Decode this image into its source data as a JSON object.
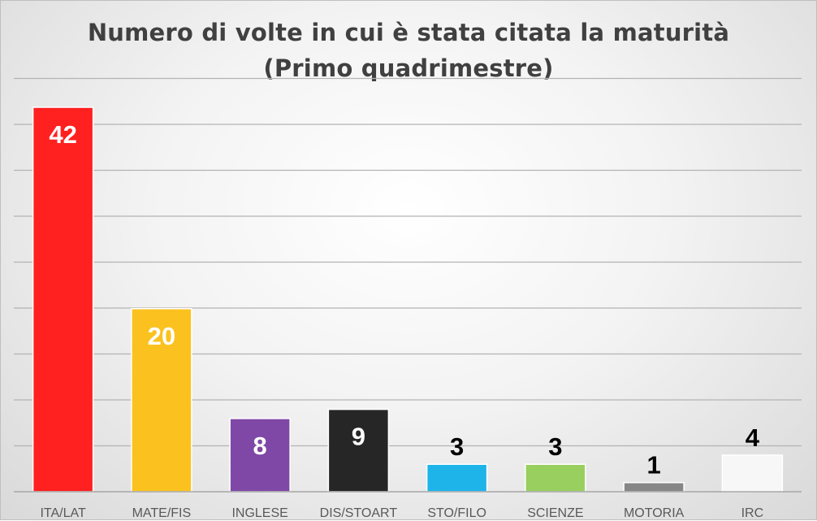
{
  "chart_data": {
    "type": "bar",
    "title": "Numero di volte in cui è stata citata la maturità",
    "subtitle": "(Primo quadrimestre)",
    "categories": [
      "ITA/LAT",
      "MATE/FIS",
      "INGLESE",
      "DIS/STOART",
      "STO/FILO",
      "SCIENZE",
      "MOTORIA",
      "IRC"
    ],
    "values": [
      42,
      20,
      8,
      9,
      3,
      3,
      1,
      4
    ],
    "colors": [
      "#ff2020",
      "#fbc21f",
      "#7f48a6",
      "#262626",
      "#1eb4ea",
      "#98cf5f",
      "#868686",
      "#f7f7f7"
    ],
    "label_colors": [
      "#ffffff",
      "#ffffff",
      "#ffffff",
      "#ffffff",
      "#000000",
      "#000000",
      "#000000",
      "#000000"
    ],
    "ylim": [
      0,
      42
    ],
    "grid": true,
    "xlabel": "",
    "ylabel": ""
  }
}
